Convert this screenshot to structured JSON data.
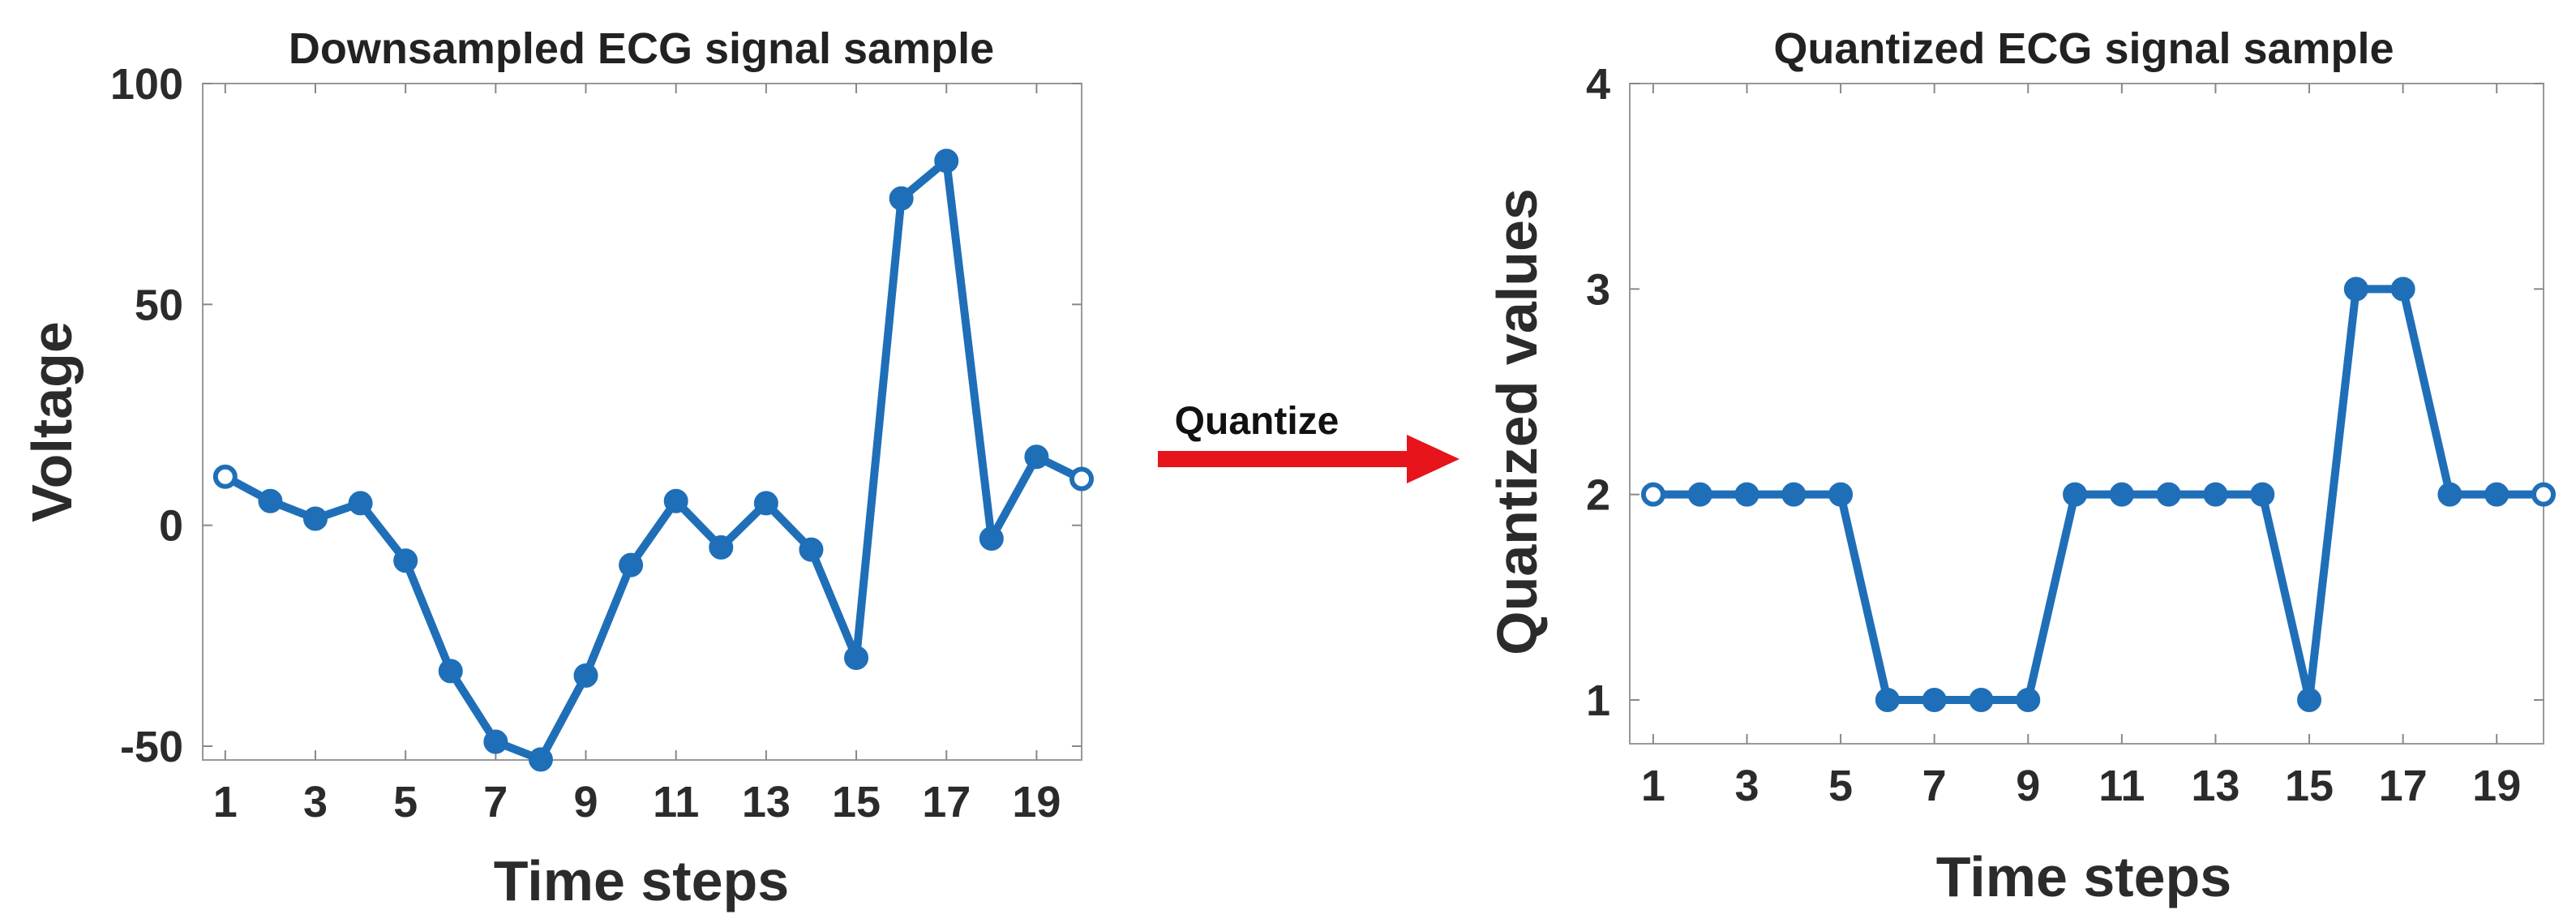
{
  "chart_data": [
    {
      "type": "line",
      "title": "Downsampled ECG signal sample",
      "xlabel": "Time steps",
      "ylabel": "Voltage",
      "x": [
        1,
        2,
        3,
        4,
        5,
        6,
        7,
        8,
        9,
        10,
        11,
        12,
        13,
        14,
        15,
        16,
        17,
        18,
        19,
        20
      ],
      "xticks": [
        1,
        3,
        5,
        7,
        9,
        11,
        13,
        15,
        17,
        19
      ],
      "xtick_labels": [
        "1",
        "3",
        "5",
        "7",
        "9",
        "11",
        "13",
        "15",
        "17",
        "19"
      ],
      "yticks": [
        -50,
        0,
        50,
        100
      ],
      "ytick_labels": [
        "-50",
        "0",
        "50",
        "100"
      ],
      "xlim": [
        0.5,
        20
      ],
      "ylim": [
        -55,
        100
      ],
      "grid": false,
      "series": [
        {
          "values": [
            11,
            5.5,
            1.5,
            5,
            -8,
            -33,
            -49,
            -53,
            -34,
            -9,
            5.5,
            -5,
            5,
            -5.5,
            -30,
            74,
            82.5,
            -3,
            15.5,
            10.5
          ],
          "color": "#1f6fb8",
          "marker": "circle"
        }
      ]
    },
    {
      "type": "line",
      "title": "Quantized ECG signal sample",
      "xlabel": "Time steps",
      "ylabel": "Quantized values",
      "x": [
        1,
        2,
        3,
        4,
        5,
        6,
        7,
        8,
        9,
        10,
        11,
        12,
        13,
        14,
        15,
        16,
        17,
        18,
        19,
        20
      ],
      "xticks": [
        1,
        3,
        5,
        7,
        9,
        11,
        13,
        15,
        17,
        19
      ],
      "xtick_labels": [
        "1",
        "3",
        "5",
        "7",
        "9",
        "11",
        "13",
        "15",
        "17",
        "19"
      ],
      "yticks": [
        1,
        2,
        3,
        4
      ],
      "ytick_labels": [
        "1",
        "2",
        "3",
        "4"
      ],
      "xlim": [
        0.5,
        20
      ],
      "ylim": [
        0.8,
        4
      ],
      "grid": false,
      "series": [
        {
          "values": [
            2,
            2,
            2,
            2,
            2,
            1,
            1,
            1,
            1,
            2,
            2,
            2,
            2,
            2,
            1,
            3,
            3,
            2,
            2,
            2
          ],
          "color": "#1f6fb8",
          "marker": "circle"
        }
      ]
    }
  ],
  "annotation": {
    "label": "Quantize",
    "arrow_color": "#e8141b"
  }
}
